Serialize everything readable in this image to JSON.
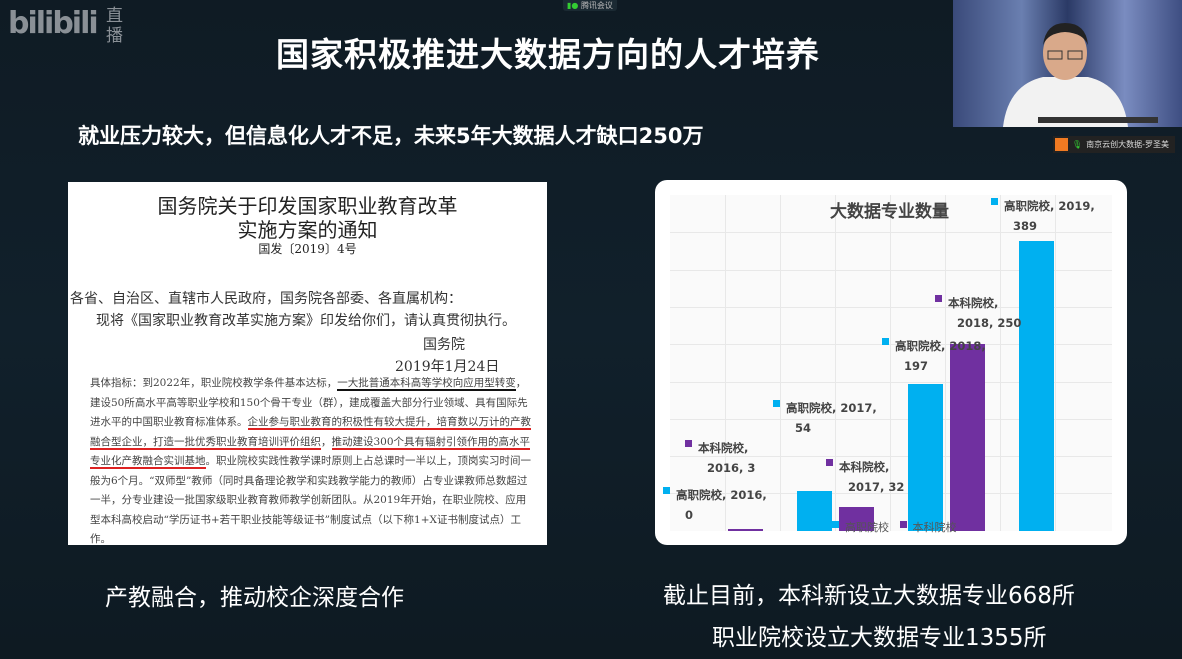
{
  "overlay": {
    "logo": "bilibili",
    "logo_live": "直播",
    "meeting_app": "腾讯会议",
    "speaker_label": "南京云创大数据-罗圣美"
  },
  "slide": {
    "title": "国家积极推进大数据方向的人才培养",
    "subtitle": "就业压力较大，但信息化人才不足，未来5年大数据人才缺口250万",
    "left_caption": "产教融合，推动校企深度合作",
    "right_caption_1": "截止目前，本科新设立大数据专业668所",
    "right_caption_2": "职业院校设立大数据专业1355所"
  },
  "document": {
    "title_1": "国务院关于印发国家职业教育改革",
    "title_2": "实施方案的通知",
    "doc_no": "国发〔2019〕4号",
    "salutation": "各省、自治区、直辖市人民政府，国务院各部委、各直属机构：",
    "body": "现将《国家职业教育改革实施方案》印发给你们，请认真贯彻执行。",
    "signer": "国务院",
    "date": "2019年1月24日",
    "para": [
      "具体指标：到2022年，职业院校教学条件基本达标，",
      "一大批普通本科高等学校向应用型转变",
      "，建设50所高水平高等职业学校和150个骨干专业（群），建成覆盖大部分行业领域、具有国际先进水平的中国职业教育标准体系。",
      "企业参与职业教育的积极性有较大提升，培育数以万计的产教融合型企业，打造一批优秀职业教育培训评价组织",
      "，",
      "推动建设300个具有辐射引领作用的高水平专业化产教融合实训基地",
      "。职业院校实践性教学课时原则上占总课时一半以上，顶岗实习时间一般为6个月。“双师型”教师（同时具备理论教学和实践教学能力的教师）占专业课教师总数超过一半，分专业建设一批国家级职业教育教师教学创新团队。从2019年开始，在职业院校、应用型本科高校启动“学历证书+若干职业技能等级证书”制度试点（以下称1+X证书制度试点）工作。"
    ]
  },
  "chart_data": {
    "type": "bar",
    "title": "大数据专业数量",
    "categories": [
      "2016",
      "2017",
      "2018",
      "2019"
    ],
    "ylim": [
      0,
      450
    ],
    "grid": true,
    "legend": "bottom",
    "series": [
      {
        "name": "高职院校",
        "color": "#00b0f0",
        "values": [
          0,
          54,
          197,
          389
        ]
      },
      {
        "name": "本科院校",
        "color": "#7030a0",
        "values": [
          3,
          32,
          250,
          null
        ]
      }
    ],
    "data_labels": [
      [
        "高职院校, 2016,",
        "0"
      ],
      [
        "本科院校,",
        "2016, 3"
      ],
      [
        "高职院校, 2017,",
        "54"
      ],
      [
        "本科院校,",
        "2017, 32"
      ],
      [
        "高职院校, 2018,",
        "197"
      ],
      [
        "本科院校,",
        "2018, 250"
      ],
      [
        "高职院校, 2019,",
        "389"
      ]
    ]
  }
}
